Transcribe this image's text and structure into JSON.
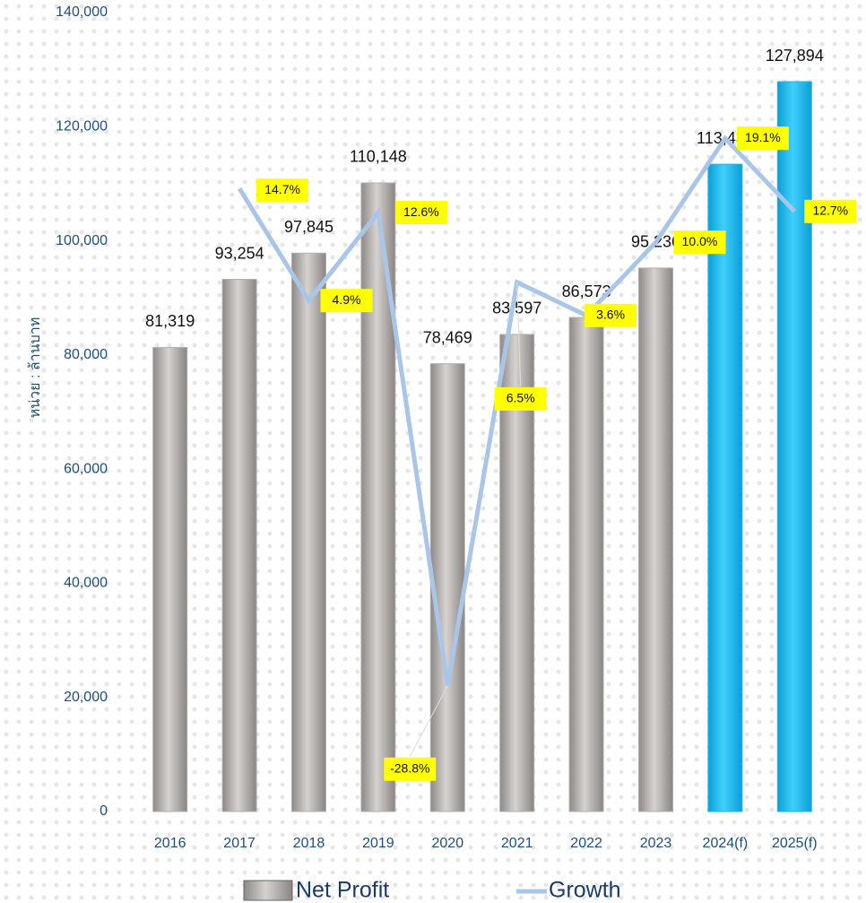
{
  "chart_data": {
    "type": "bar_line",
    "y_axis_label": "หน่วย : ล้านบาท",
    "categories": [
      "2016",
      "2017",
      "2018",
      "2019",
      "2020",
      "2021",
      "2022",
      "2023",
      "2024(f)",
      "2025(f)"
    ],
    "series": [
      {
        "name": "Net Profit",
        "type": "bar",
        "color": "#b4afab",
        "colors": [
          "#b4afab",
          "#b4afab",
          "#b4afab",
          "#b4afab",
          "#b4afab",
          "#b4afab",
          "#b4afab",
          "#b4afab",
          "#1ab8ea",
          "#1ab8ea"
        ],
        "values": [
          81319,
          93254,
          97845,
          110148,
          78469,
          83597,
          86573,
          95236,
          113430,
          127894
        ],
        "value_labels": [
          "81,319",
          "93,254",
          "97,845",
          "110,148",
          "78,469",
          "83,597",
          "86,573",
          "95,236",
          "113,430",
          "127,894"
        ]
      },
      {
        "name": "Growth",
        "type": "line",
        "axis": "y2",
        "color": "#a9c6e8",
        "values": [
          null,
          14.7,
          4.9,
          12.6,
          -28.8,
          6.5,
          3.6,
          10.0,
          19.1,
          12.7
        ],
        "value_labels": [
          null,
          "14.7%",
          "4.9%",
          "12.6%",
          "-28.8%",
          "6.5%",
          "3.6%",
          "10.0%",
          "19.1%",
          "12.7%"
        ]
      }
    ],
    "ylim": [
      0,
      140000
    ],
    "yticks": [
      0,
      {
        "value": 20000,
        "label": "20,000"
      },
      {
        "value": 40000,
        "label": "40,000"
      },
      {
        "value": 60000,
        "label": "60,000"
      },
      {
        "value": 80000,
        "label": "80,000"
      },
      {
        "value": 100000,
        "label": "100,000"
      },
      {
        "value": 120000,
        "label": "120,000"
      },
      {
        "value": 140000,
        "label": "140,000"
      }
    ],
    "y2lim": [
      -39.8,
      30.1
    ],
    "legend": "bottom"
  }
}
